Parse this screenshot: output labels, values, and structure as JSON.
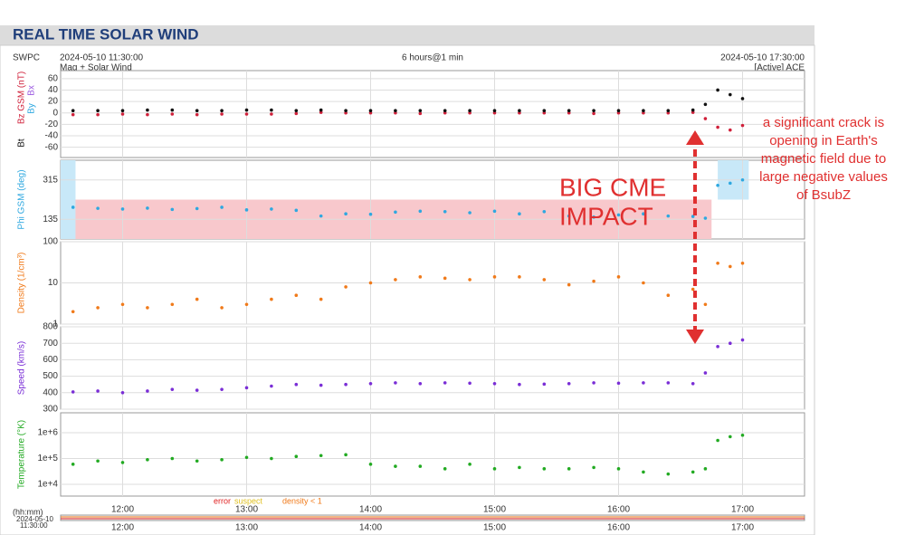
{
  "header": {
    "title": "REAL TIME SOLAR WIND",
    "source": "SWPC",
    "start": "2024-05-10 11:30:00",
    "span": "6 hours@1 min",
    "end": "2024-05-10 17:30:00",
    "subtitle": "Mag + Solar Wind",
    "status": "[Active] ACE"
  },
  "annotations": {
    "impact": [
      "BIG CME",
      "IMPACT"
    ],
    "note": [
      "a significant crack is",
      "opening in Earth's",
      "magnetic field due to",
      "large negative values",
      "of BsubZ"
    ]
  },
  "footer": {
    "legend": [
      {
        "text": "error",
        "color": "#e02020"
      },
      {
        "text": "suspect",
        "color": "#e0c020"
      },
      {
        "text": "density < 1",
        "color": "#f07a1a"
      }
    ],
    "unit": "(hh:mm)",
    "date": "2024-05-10",
    "time": "11:30:00"
  },
  "chart_data": [
    {
      "type": "scatter",
      "xlim": [
        11.5,
        17.5
      ],
      "xticks": [
        {
          "value": 12,
          "label": "12:00"
        },
        {
          "value": 13,
          "label": "13:00"
        },
        {
          "value": 14,
          "label": "14:00"
        },
        {
          "value": 15,
          "label": "15:00"
        },
        {
          "value": 16,
          "label": "16:00"
        },
        {
          "value": 17,
          "label": "17:00"
        }
      ],
      "ylim": [
        -78,
        74
      ],
      "yticks": [
        60,
        40,
        20,
        0,
        -20,
        -40,
        -60
      ],
      "grid": true,
      "extra_labels": [
        {
          "text": "Bx",
          "color": "#9b59e0"
        },
        {
          "text": "By",
          "color": "#2ea8e0"
        }
      ],
      "x": [
        11.6,
        11.8,
        12.0,
        12.2,
        12.4,
        12.6,
        12.8,
        13.0,
        13.2,
        13.4,
        13.6,
        13.8,
        14.0,
        14.2,
        14.4,
        14.6,
        14.8,
        15.0,
        15.2,
        15.4,
        15.6,
        15.8,
        16.0,
        16.2,
        16.4,
        16.6,
        16.7,
        16.8,
        16.9,
        17.0
      ],
      "series": [
        {
          "name": "Bz GSM (nT)",
          "color": "#d0203a",
          "values": [
            -3,
            -3,
            -2,
            -3,
            -2,
            -3,
            -2,
            -2,
            -2,
            -1,
            1,
            0,
            0,
            0,
            -1,
            0,
            0,
            0,
            0,
            0,
            0,
            -1,
            0,
            0,
            0,
            1,
            -10,
            -25,
            -30,
            -22
          ]
        },
        {
          "name": "Bt",
          "color": "#111111",
          "values": [
            4,
            4,
            4,
            5,
            5,
            4,
            4,
            5,
            5,
            4,
            5,
            4,
            4,
            4,
            4,
            4,
            4,
            4,
            4,
            4,
            4,
            4,
            4,
            4,
            4,
            5,
            15,
            40,
            32,
            25
          ]
        }
      ]
    },
    {
      "type": "scatter",
      "xlim": [
        11.5,
        17.5
      ],
      "xticks": [
        {
          "value": 12,
          "label": "12:00"
        },
        {
          "value": 13,
          "label": "13:00"
        },
        {
          "value": 14,
          "label": "14:00"
        },
        {
          "value": 15,
          "label": "15:00"
        },
        {
          "value": 16,
          "label": "16:00"
        },
        {
          "value": 17,
          "label": "17:00"
        }
      ],
      "ylim": [
        45,
        405
      ],
      "yticks": [
        315,
        135
      ],
      "grid": true,
      "bands": [
        {
          "x": [
            11.6,
            16.75
          ],
          "y": [
            45,
            225
          ],
          "color": "#f8c8cc"
        },
        {
          "x": [
            11.5,
            11.62
          ],
          "y": [
            45,
            405
          ],
          "color": "#c8e8f8"
        },
        {
          "x": [
            16.8,
            17.05
          ],
          "y": [
            225,
            405
          ],
          "color": "#c8e8f8"
        }
      ],
      "x": [
        11.6,
        11.8,
        12.0,
        12.2,
        12.4,
        12.6,
        12.8,
        13.0,
        13.2,
        13.4,
        13.6,
        13.8,
        14.0,
        14.2,
        14.4,
        14.6,
        14.8,
        15.0,
        15.2,
        15.4,
        15.6,
        15.8,
        16.0,
        16.2,
        16.4,
        16.6,
        16.7,
        16.8,
        16.9,
        17.0
      ],
      "series": [
        {
          "name": "Phi GSM (deg)",
          "color": "#2ea8e0",
          "values": [
            190,
            185,
            182,
            186,
            180,
            184,
            190,
            178,
            182,
            176,
            150,
            160,
            158,
            168,
            172,
            170,
            165,
            172,
            160,
            170,
            150,
            145,
            155,
            160,
            150,
            148,
            140,
            290,
            300,
            315
          ]
        }
      ]
    },
    {
      "type": "scatter",
      "log": true,
      "xlim": [
        11.5,
        17.5
      ],
      "xticks": [
        {
          "value": 12,
          "label": "12:00"
        },
        {
          "value": 13,
          "label": "13:00"
        },
        {
          "value": 14,
          "label": "14:00"
        },
        {
          "value": 15,
          "label": "15:00"
        },
        {
          "value": 16,
          "label": "16:00"
        },
        {
          "value": 17,
          "label": "17:00"
        }
      ],
      "ylim": [
        1,
        100
      ],
      "yticks": [
        100,
        10,
        1
      ],
      "grid": true,
      "x": [
        11.6,
        11.8,
        12.0,
        12.2,
        12.4,
        12.6,
        12.8,
        13.0,
        13.2,
        13.4,
        13.6,
        13.8,
        14.0,
        14.2,
        14.4,
        14.6,
        14.8,
        15.0,
        15.2,
        15.4,
        15.6,
        15.8,
        16.0,
        16.2,
        16.4,
        16.6,
        16.7,
        16.8,
        16.9,
        17.0
      ],
      "series": [
        {
          "name": "Density (1/cm³)",
          "color": "#f07a1a",
          "values": [
            2,
            2.5,
            3,
            2.5,
            3,
            4,
            2.5,
            3,
            4,
            5,
            4,
            8,
            10,
            12,
            14,
            13,
            12,
            14,
            14,
            12,
            9,
            11,
            14,
            10,
            5,
            7,
            3,
            30,
            25,
            30
          ]
        }
      ]
    },
    {
      "type": "scatter",
      "xlim": [
        11.5,
        17.5
      ],
      "xticks": [
        {
          "value": 12,
          "label": "12:00"
        },
        {
          "value": 13,
          "label": "13:00"
        },
        {
          "value": 14,
          "label": "14:00"
        },
        {
          "value": 15,
          "label": "15:00"
        },
        {
          "value": 16,
          "label": "16:00"
        },
        {
          "value": 17,
          "label": "17:00"
        }
      ],
      "ylim": [
        300,
        800
      ],
      "yticks": [
        800,
        700,
        600,
        500,
        400,
        300
      ],
      "grid": true,
      "x": [
        11.6,
        11.8,
        12.0,
        12.2,
        12.4,
        12.6,
        12.8,
        13.0,
        13.2,
        13.4,
        13.6,
        13.8,
        14.0,
        14.2,
        14.4,
        14.6,
        14.8,
        15.0,
        15.2,
        15.4,
        15.6,
        15.8,
        16.0,
        16.2,
        16.4,
        16.6,
        16.7,
        16.8,
        16.9,
        17.0
      ],
      "series": [
        {
          "name": "Speed (km/s)",
          "color": "#7a2ed6",
          "values": [
            405,
            410,
            400,
            410,
            420,
            415,
            420,
            430,
            440,
            450,
            445,
            450,
            455,
            460,
            455,
            460,
            458,
            455,
            450,
            452,
            455,
            460,
            458,
            460,
            460,
            455,
            520,
            680,
            700,
            720
          ]
        }
      ]
    },
    {
      "type": "scatter",
      "log": true,
      "xlim": [
        11.5,
        17.5
      ],
      "xticks": [
        {
          "value": 12,
          "label": "12:00"
        },
        {
          "value": 13,
          "label": "13:00"
        },
        {
          "value": 14,
          "label": "14:00"
        },
        {
          "value": 15,
          "label": "15:00"
        },
        {
          "value": 16,
          "label": "16:00"
        },
        {
          "value": 17,
          "label": "17:00"
        }
      ],
      "ylim": [
        3500,
        5900000
      ],
      "yticks": [
        {
          "value": 1000000,
          "label": "1e+6"
        },
        {
          "value": 100000,
          "label": "1e+5"
        },
        {
          "value": 10000,
          "label": "1e+4"
        }
      ],
      "grid": true,
      "x": [
        11.6,
        11.8,
        12.0,
        12.2,
        12.4,
        12.6,
        12.8,
        13.0,
        13.2,
        13.4,
        13.6,
        13.8,
        14.0,
        14.2,
        14.4,
        14.6,
        14.8,
        15.0,
        15.2,
        15.4,
        15.6,
        15.8,
        16.0,
        16.2,
        16.4,
        16.6,
        16.7,
        16.8,
        16.9,
        17.0
      ],
      "series": [
        {
          "name": "Temperature (°K)",
          "color": "#22aa22",
          "values": [
            60000,
            80000,
            70000,
            90000,
            100000,
            80000,
            90000,
            110000,
            100000,
            120000,
            130000,
            140000,
            60000,
            50000,
            50000,
            40000,
            60000,
            40000,
            45000,
            40000,
            40000,
            45000,
            40000,
            30000,
            25000,
            30000,
            40000,
            500000,
            700000,
            800000
          ]
        }
      ]
    }
  ]
}
